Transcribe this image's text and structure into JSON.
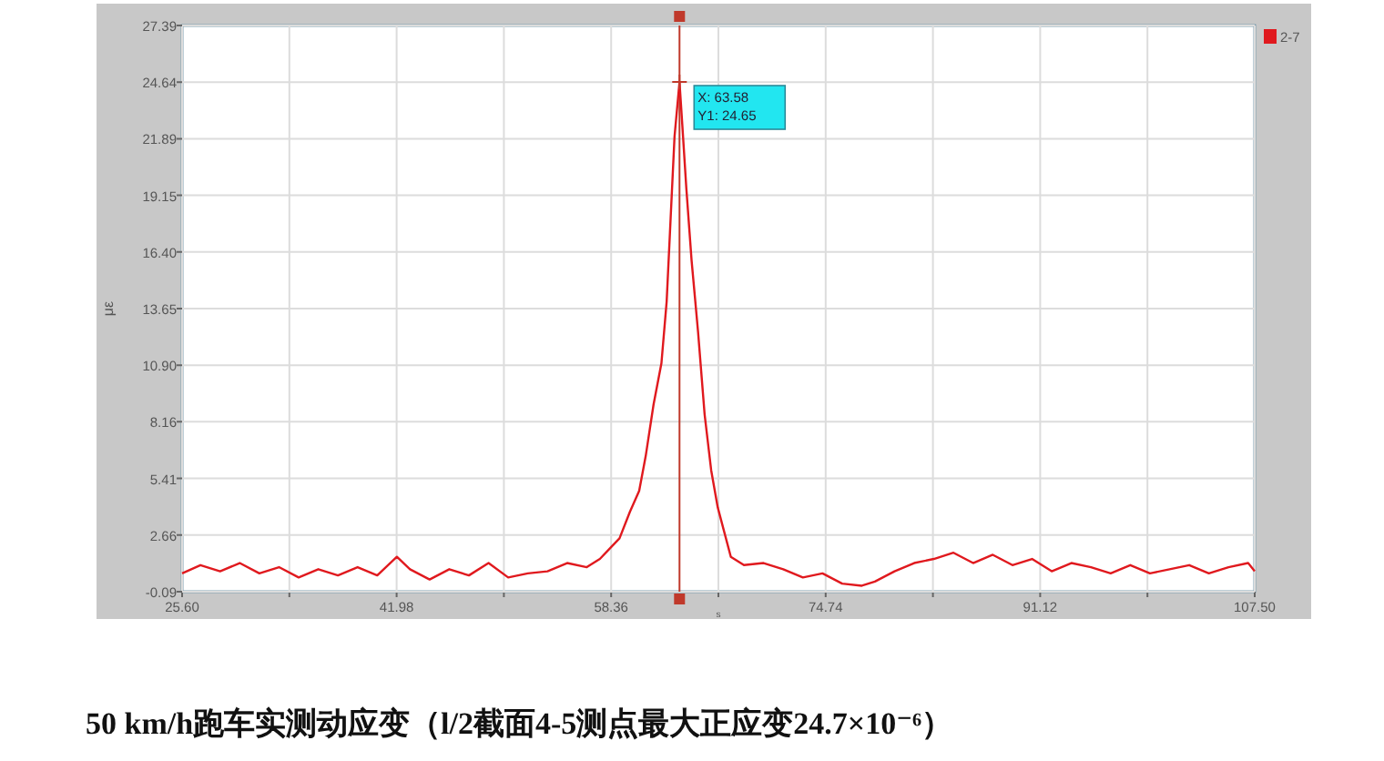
{
  "chart_data": {
    "type": "line",
    "title": "50 km/h跑车实测动应变（l/2截面4-5测点最大正应变24.7×10⁻⁶）",
    "xlabel": "s",
    "ylabel": "με",
    "x": [
      25.6,
      27,
      28.5,
      30,
      31.5,
      33,
      34.5,
      36,
      37.5,
      39,
      40.5,
      42,
      43,
      44.5,
      46,
      47.5,
      49,
      50.5,
      52,
      53.5,
      55,
      56.5,
      57.5,
      58.4,
      59,
      59.8,
      60.5,
      61,
      61.6,
      62.2,
      62.6,
      62.9,
      63.2,
      63.58,
      63.8,
      64.1,
      64.5,
      65,
      65.5,
      66,
      66.5,
      67,
      67.5,
      68.5,
      70,
      71.5,
      73,
      74.5,
      76,
      77.5,
      78.5,
      80,
      81.5,
      83,
      84.5,
      86,
      87.5,
      89,
      90.5,
      92,
      93.5,
      95,
      96.5,
      98,
      99.5,
      101,
      102.5,
      104,
      105.5,
      107,
      107.5
    ],
    "series": [
      {
        "name": "2-7",
        "color": "#e0191e",
        "values": [
          0.8,
          1.2,
          0.9,
          1.3,
          0.8,
          1.1,
          0.6,
          1.0,
          0.7,
          1.1,
          0.7,
          1.6,
          1.0,
          0.5,
          1.0,
          0.7,
          1.3,
          0.6,
          0.8,
          0.9,
          1.3,
          1.1,
          1.5,
          2.1,
          2.5,
          3.8,
          4.8,
          6.5,
          9.0,
          11.0,
          14.0,
          18.0,
          22.0,
          24.65,
          22.5,
          19.5,
          16.0,
          12.5,
          8.5,
          5.8,
          4.0,
          2.8,
          1.6,
          1.2,
          1.3,
          1.0,
          0.6,
          0.8,
          0.3,
          0.2,
          0.4,
          0.9,
          1.3,
          1.5,
          1.8,
          1.3,
          1.7,
          1.2,
          1.5,
          0.9,
          1.3,
          1.1,
          0.8,
          1.2,
          0.8,
          1.0,
          1.2,
          0.8,
          1.1,
          1.3,
          0.9
        ]
      }
    ],
    "xlim": [
      25.6,
      107.5
    ],
    "xticks": [
      {
        "value": 25.6,
        "label": "25.60"
      },
      {
        "value": 33.79,
        "label": null
      },
      {
        "value": 41.98,
        "label": "41.98"
      },
      {
        "value": 50.17,
        "label": null
      },
      {
        "value": 58.36,
        "label": "58.36"
      },
      {
        "value": 66.55,
        "label": null
      },
      {
        "value": 74.74,
        "label": "74.74"
      },
      {
        "value": 82.93,
        "label": null
      },
      {
        "value": 91.12,
        "label": "91.12"
      },
      {
        "value": 99.31,
        "label": null
      },
      {
        "value": 107.5,
        "label": "107.50"
      }
    ],
    "ylim": [
      -0.09,
      27.39
    ],
    "yticks": [
      -0.09,
      2.66,
      5.41,
      8.16,
      {
        "value": 10.9,
        "label": "10.90"
      },
      13.65,
      {
        "value": 16.4,
        "label": "16.40"
      },
      19.15,
      21.89,
      24.64,
      27.39
    ],
    "grid": true,
    "legend": "top right",
    "ref_lines": [
      {
        "axis": "x",
        "value": 63.58,
        "color": "#c0392b"
      }
    ],
    "annotations": [
      {
        "text": "X: 63.58\nY1: 24.65",
        "x": 63.58,
        "y": 24.65
      }
    ]
  }
}
